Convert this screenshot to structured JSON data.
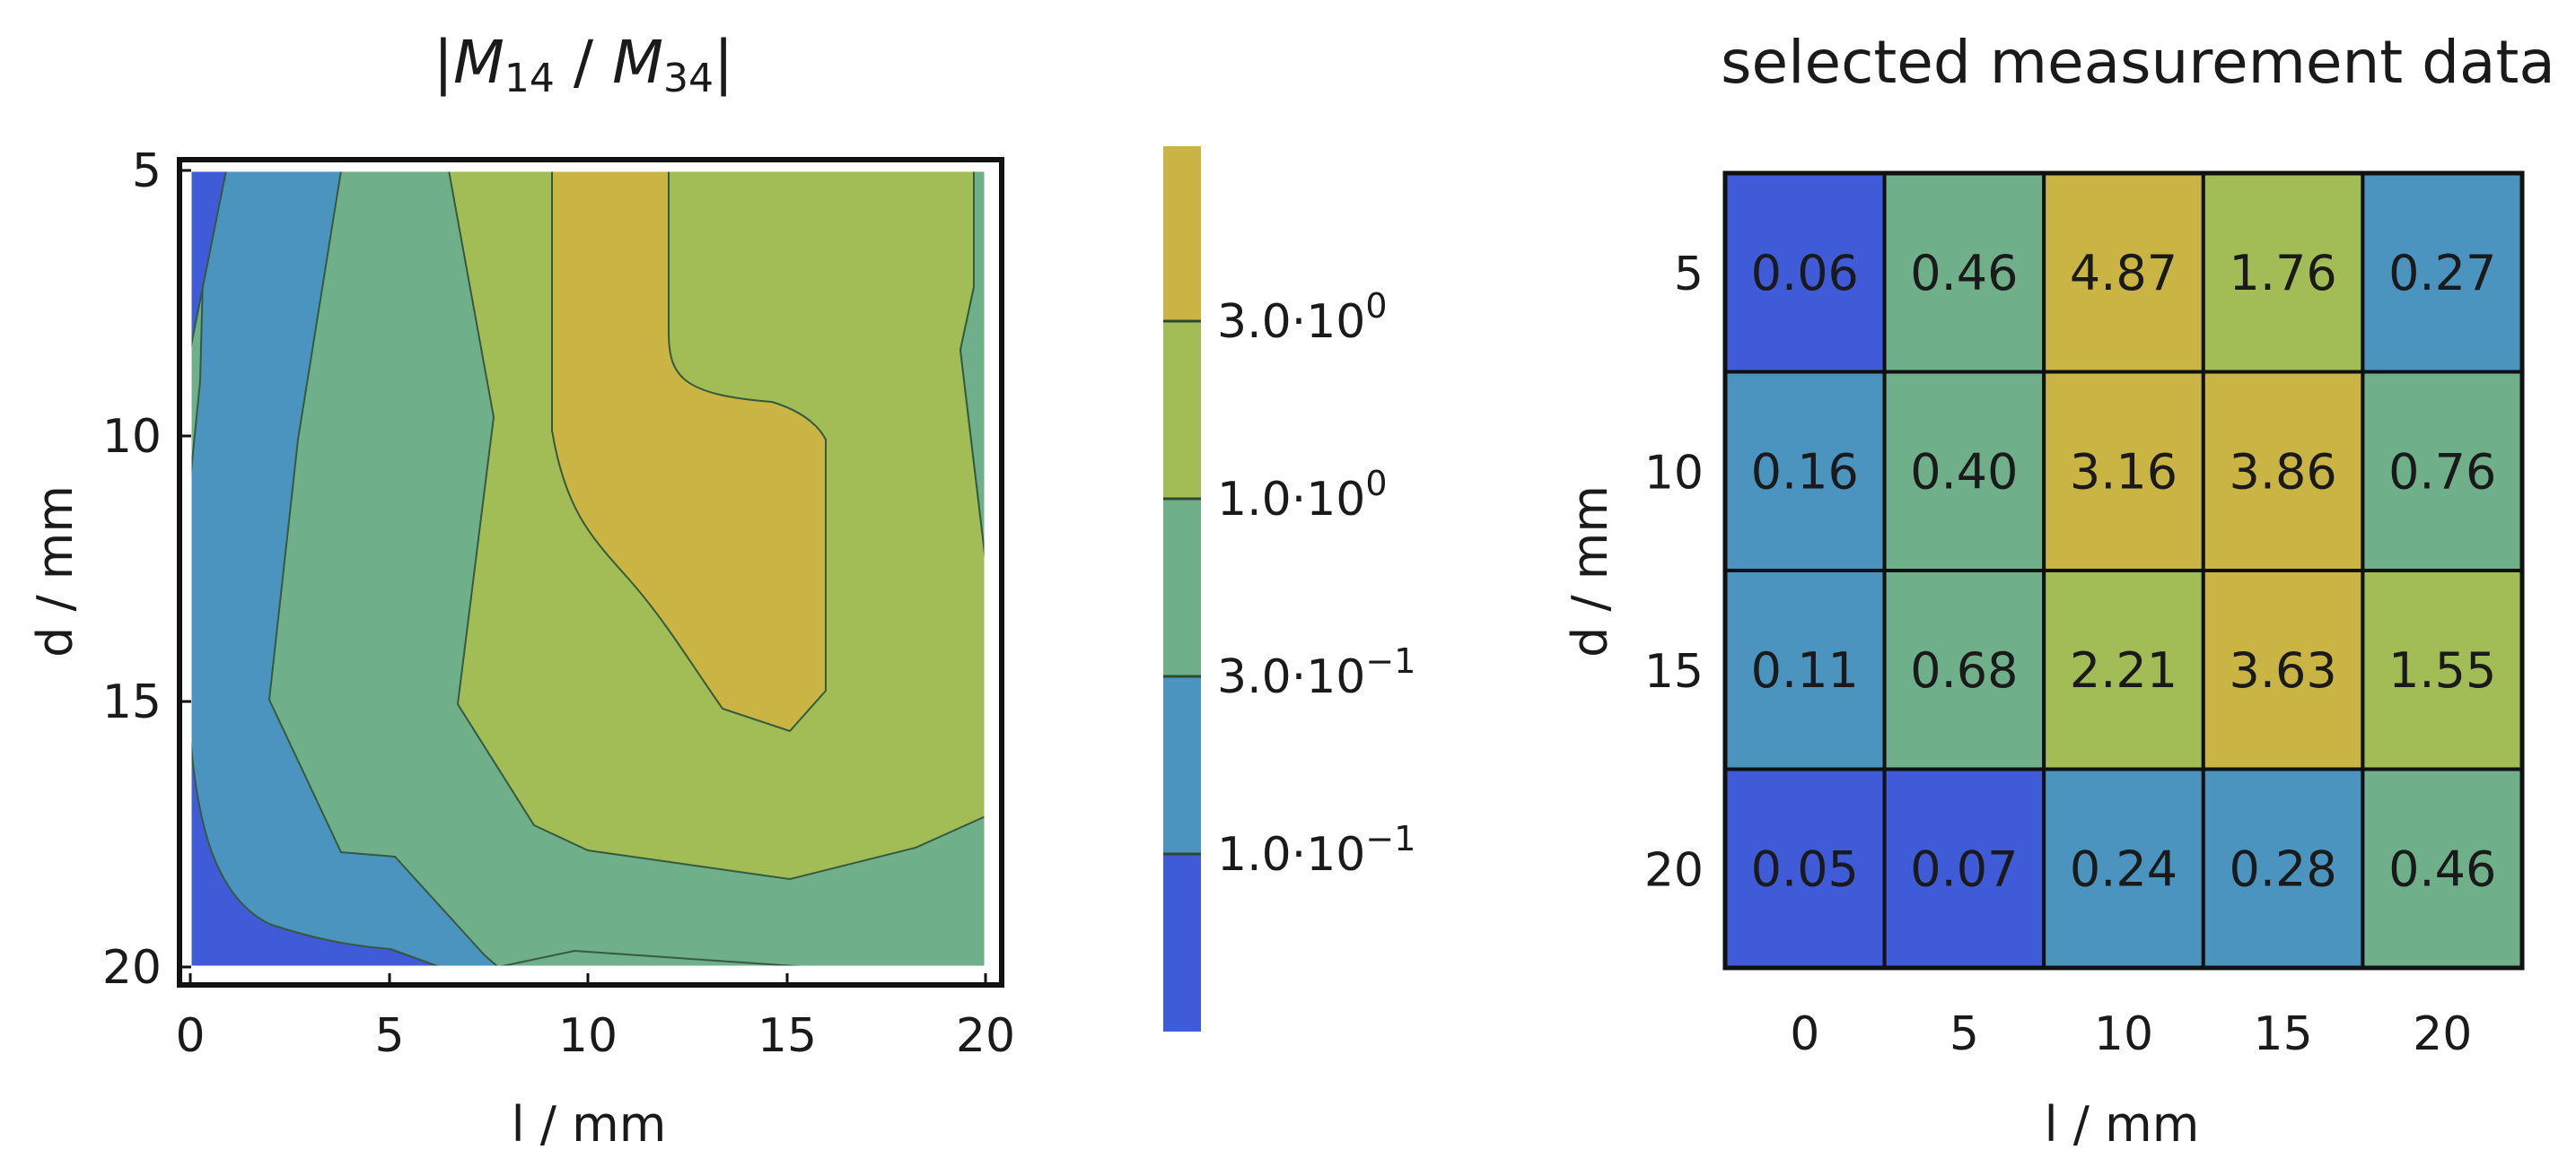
{
  "chart_data": [
    {
      "type": "contour",
      "title_parts": {
        "bar": "|",
        "m1": "M",
        "s1": "14",
        "slash": " / ",
        "m2": "M",
        "s2": "34"
      },
      "xlabel": "l / mm",
      "ylabel": "d / mm",
      "xlim": [
        0,
        20
      ],
      "ylim": [
        20,
        5
      ],
      "x_ticks": [
        "0",
        "5",
        "10",
        "15",
        "20"
      ],
      "y_ticks": [
        "5",
        "10",
        "15",
        "20"
      ],
      "grid": false,
      "contour_levels": [
        0.1,
        0.3,
        1.0,
        3.0
      ],
      "colorbar": {
        "labels": [
          {
            "mantissa": "1.0·10",
            "exp": "−1"
          },
          {
            "mantissa": "3.0·10",
            "exp": "−1"
          },
          {
            "mantissa": "1.0·10",
            "exp": "0"
          },
          {
            "mantissa": "3.0·10",
            "exp": "0"
          }
        ],
        "colors": [
          "#3f5bd7",
          "#4b94bf",
          "#6faf89",
          "#a2bd55",
          "#c9b444"
        ]
      }
    },
    {
      "type": "heatmap",
      "title": "selected measurement data",
      "xlabel": "l / mm",
      "ylabel": "d / mm",
      "x": [
        "0",
        "5",
        "10",
        "15",
        "20"
      ],
      "y": [
        "5",
        "10",
        "15",
        "20"
      ],
      "values": [
        [
          "0.06",
          "0.46",
          "4.87",
          "1.76",
          "0.27"
        ],
        [
          "0.16",
          "0.40",
          "3.16",
          "3.86",
          "0.76"
        ],
        [
          "0.11",
          "0.68",
          "2.21",
          "3.63",
          "1.55"
        ],
        [
          "0.05",
          "0.07",
          "0.24",
          "0.28",
          "0.46"
        ]
      ]
    }
  ]
}
